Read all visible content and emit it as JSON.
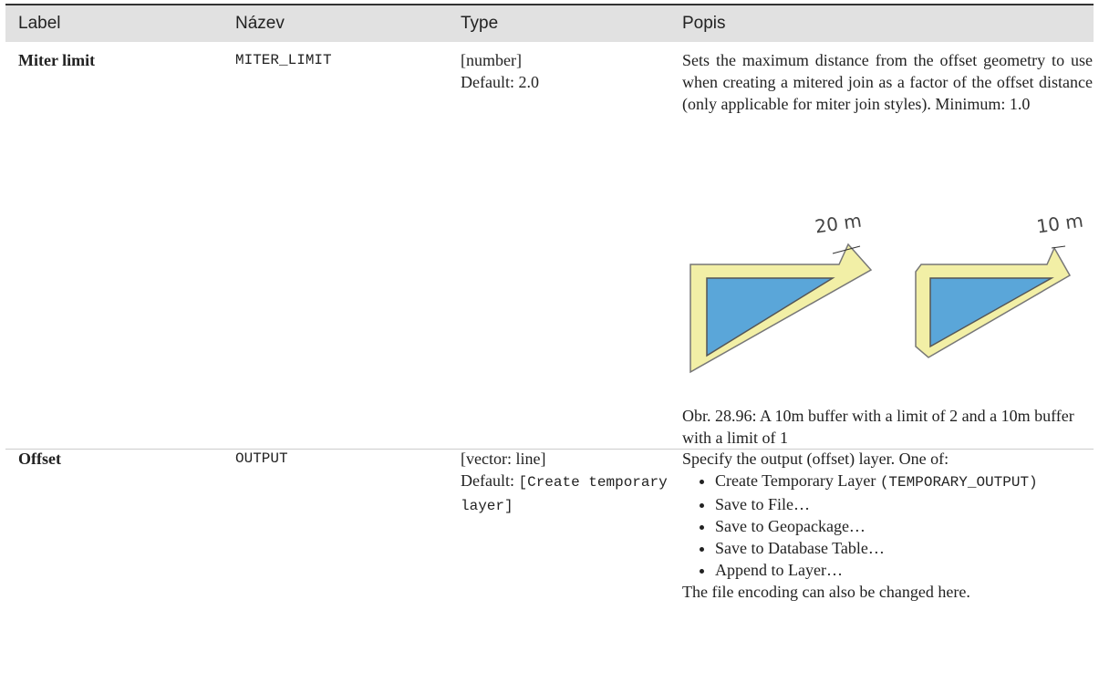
{
  "table": {
    "header": [
      "Label",
      "Název",
      "Type",
      "Popis"
    ],
    "rows": [
      {
        "label": "Miter limit",
        "name": "MITER_LIMIT",
        "type": "[number]",
        "default": "Default: 2.0",
        "description": "Sets the maximum distance from the offset geometry to use when creating a mitered join as a factor of the offset distance (only applicable for miter join styles). Minimum: 1.0",
        "figure_labels": [
          "20 m",
          "10 m"
        ],
        "caption": "Obr. 28.96: A 10m buffer with a limit of 2 and a 10m buffer with a limit of 1"
      },
      {
        "label": "Offset",
        "name": "OUTPUT",
        "type": "[vector: line]",
        "default_prefix": "Default:",
        "default_code": "[Create temporary layer]",
        "description": "Specify the output (offset) layer. One of:",
        "first_bullet_text": "Create Temporary Layer",
        "first_bullet_code": "(TEMPORARY_OUTPUT)",
        "bullets": [
          "Save to File…",
          "Save to Geopackage…",
          "Save to Database Table…",
          "Append to Layer…"
        ],
        "footer": "The file encoding can also be changed here."
      }
    ]
  }
}
